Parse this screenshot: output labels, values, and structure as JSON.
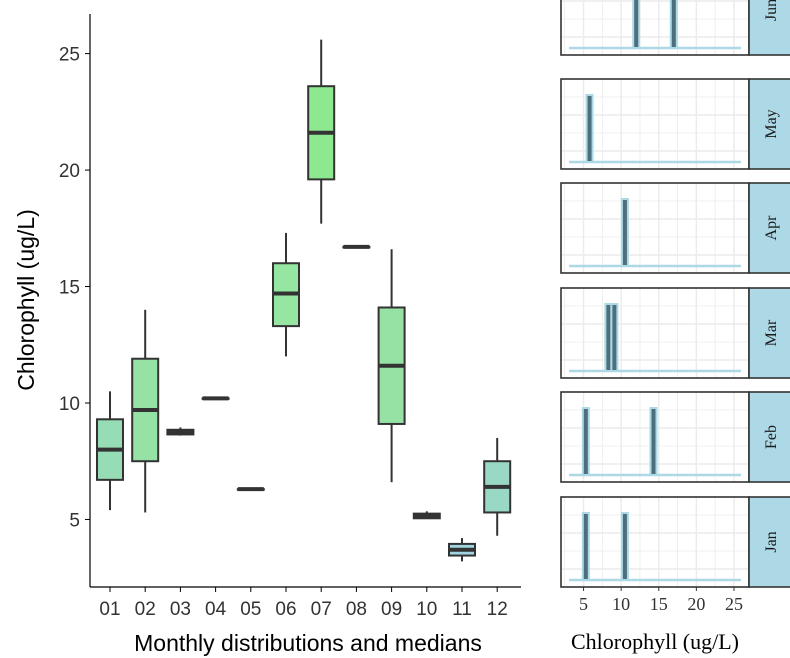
{
  "chart_data": [
    {
      "type": "box",
      "xlabel": "Monthly distributions and medians",
      "ylabel": "Chlorophyll (ug/L)",
      "ylim": [
        2.1,
        26.7
      ],
      "yticks": [
        5,
        10,
        15,
        20,
        25
      ],
      "categories": [
        "01",
        "02",
        "03",
        "04",
        "05",
        "06",
        "07",
        "08",
        "09",
        "10",
        "11",
        "12"
      ],
      "boxes": [
        {
          "min": 5.4,
          "q1": 6.7,
          "median": 8.0,
          "q3": 9.3,
          "max": 10.5,
          "fill": "#96dcb4"
        },
        {
          "min": 5.3,
          "q1": 7.5,
          "median": 9.7,
          "q3": 11.9,
          "max": 14.0,
          "fill": "#96e2a4"
        },
        {
          "min": 8.6,
          "q1": 8.65,
          "median": 8.75,
          "q3": 8.85,
          "max": 8.95,
          "fill": "#96e2a4"
        },
        {
          "min": 10.2,
          "q1": 10.2,
          "median": 10.2,
          "q3": 10.2,
          "max": 10.2,
          "fill": "#96e2a4"
        },
        {
          "min": 6.3,
          "q1": 6.3,
          "median": 6.3,
          "q3": 6.3,
          "max": 6.3,
          "fill": "#96e2a4"
        },
        {
          "min": 12.0,
          "q1": 13.3,
          "median": 14.7,
          "q3": 16.0,
          "max": 17.3,
          "fill": "#94e6a0"
        },
        {
          "min": 17.7,
          "q1": 19.6,
          "median": 21.6,
          "q3": 23.6,
          "max": 25.6,
          "fill": "#8ee890"
        },
        {
          "min": 16.7,
          "q1": 16.7,
          "median": 16.7,
          "q3": 16.7,
          "max": 16.7,
          "fill": "#96e2a4"
        },
        {
          "min": 6.6,
          "q1": 9.1,
          "median": 11.6,
          "q3": 14.1,
          "max": 16.6,
          "fill": "#96e2a4"
        },
        {
          "min": 5.05,
          "q1": 5.05,
          "median": 5.15,
          "q3": 5.25,
          "max": 5.35,
          "fill": "#96dcb4"
        },
        {
          "min": 3.2,
          "q1": 3.45,
          "median": 3.7,
          "q3": 3.95,
          "max": 4.2,
          "fill": "#a2d4e0"
        },
        {
          "min": 4.3,
          "q1": 5.3,
          "median": 6.4,
          "q3": 7.5,
          "max": 8.5,
          "fill": "#9ad8c6"
        }
      ]
    },
    {
      "type": "histogram",
      "xlabel": "Chlorophyll (ug/L)",
      "xlim": [
        2,
        27
      ],
      "xticks": [
        5,
        10,
        15,
        20,
        25
      ],
      "facets": [
        {
          "label": "Jun",
          "values": [
            12.0,
            17.0
          ]
        },
        {
          "label": "May",
          "values": [
            5.8
          ]
        },
        {
          "label": "Apr",
          "values": [
            10.5
          ]
        },
        {
          "label": "Mar",
          "values": [
            8.3,
            9.1
          ]
        },
        {
          "label": "Feb",
          "values": [
            5.3,
            14.3
          ]
        },
        {
          "label": "Jan",
          "values": [
            5.3,
            10.5
          ]
        }
      ]
    }
  ],
  "colors": {
    "box_outline": "#333333",
    "hist_bar_fill": "#4d6f7d",
    "hist_bar_outline": "#add8e6",
    "strip_fill": "#add8e6",
    "grid": "#ebebeb"
  }
}
